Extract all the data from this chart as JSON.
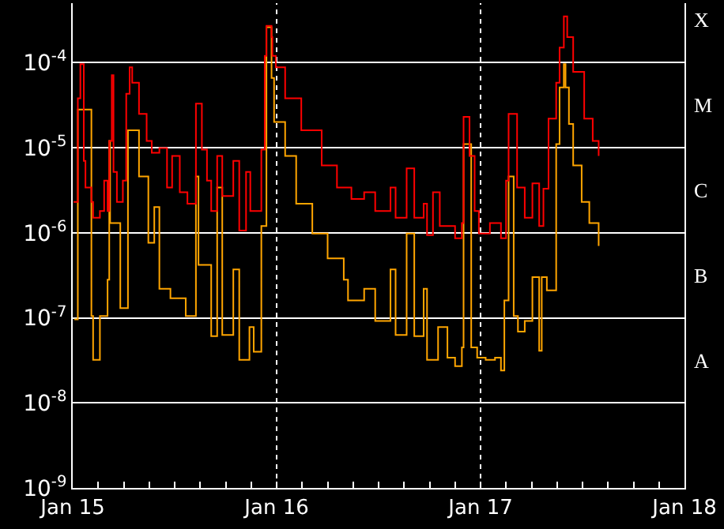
{
  "chart_data": {
    "type": "step",
    "log": "y",
    "grid": "y",
    "marker": "none",
    "line_style": "solid",
    "xlim": [
      "--01-15",
      "--01-18"
    ],
    "xticks": [
      {
        "value": "--01-15",
        "label": "Jan 15"
      },
      {
        "value": "--01-15T03:00",
        "label": null
      },
      {
        "value": "--01-15T06:00",
        "label": null
      },
      {
        "value": "--01-15T09:00",
        "label": null
      },
      {
        "value": "--01-15T12:00",
        "label": null
      },
      {
        "value": "--01-15T15:00",
        "label": null
      },
      {
        "value": "--01-15T18:00",
        "label": null
      },
      {
        "value": "--01-15T21:00",
        "label": null
      },
      {
        "value": "--01-16",
        "label": "Jan 16"
      },
      {
        "value": "--01-16T03:00",
        "label": null
      },
      {
        "value": "--01-16T06:00",
        "label": null
      },
      {
        "value": "--01-16T09:00",
        "label": null
      },
      {
        "value": "--01-16T12:00",
        "label": null
      },
      {
        "value": "--01-16T15:00",
        "label": null
      },
      {
        "value": "--01-16T18:00",
        "label": null
      },
      {
        "value": "--01-16T21:00",
        "label": null
      },
      {
        "value": "--01-17",
        "label": "Jan 17"
      },
      {
        "value": "--01-17T03:00",
        "label": null
      },
      {
        "value": "--01-17T06:00",
        "label": null
      },
      {
        "value": "--01-17T09:00",
        "label": null
      },
      {
        "value": "--01-17T12:00",
        "label": null
      },
      {
        "value": "--01-17T15:00",
        "label": null
      },
      {
        "value": "--01-17T18:00",
        "label": null
      },
      {
        "value": "--01-17T21:00",
        "label": null
      },
      {
        "value": "--01-18",
        "label": "Jan 18"
      }
    ],
    "ylim": [
      1e-09,
      0.0005
    ],
    "yticks": [
      {
        "value": 1e-09,
        "label": "10$^{-9}$"
      },
      {
        "value": 1e-08,
        "label": "10$^{-8}$"
      },
      {
        "value": 1e-07,
        "label": "10$^{-7}$"
      },
      {
        "value": 1e-06,
        "label": "10$^{-6}$"
      },
      {
        "value": 1e-05,
        "label": "10$^{-5}$"
      },
      {
        "value": 0.0001,
        "label": "10$^{-4}$"
      }
    ],
    "annotations": [
      "A",
      "B",
      "C",
      "M",
      "X"
    ],
    "ref_lines": [
      {
        "axis": "x",
        "value": "--01-16",
        "color": "#ffffff",
        "line_style": "dotted"
      },
      {
        "axis": "x",
        "value": "--01-17",
        "color": "#ffffff",
        "line_style": "dotted"
      }
    ],
    "series": [
      {
        "color": "#ffa500",
        "x": [
          "--01-15T00:12",
          "--01-15T00:36",
          "--01-15T02:12",
          "--01-15T02:24",
          "--01-15T03:12",
          "--01-15T04:06",
          "--01-15T04:18",
          "--01-15T04:24",
          "--01-15T05:36",
          "--01-15T06:30",
          "--01-15T07:48",
          "--01-15T08:54",
          "--01-15T09:36",
          "--01-15T10:12",
          "--01-15T11:30",
          "--01-15T13:18",
          "--01-15T14:30",
          "--01-15T14:48",
          "--01-15T16:18",
          "--01-15T17:00",
          "--01-15T17:36",
          "--01-15T18:54",
          "--01-15T19:36",
          "--01-15T20:48",
          "--01-15T21:18",
          "--01-15T22:12",
          "--01-15T22:48",
          "--01-15T23:24",
          "--01-15T23:42",
          "--01-16T01:00",
          "--01-16T02:18",
          "--01-16T04:12",
          "--01-16T06:00",
          "--01-16T07:54",
          "--01-16T08:24",
          "--01-16T10:18",
          "--01-16T11:36",
          "--01-16T13:24",
          "--01-16T14:00",
          "--01-16T15:18",
          "--01-16T16:12",
          "--01-16T17:18",
          "--01-16T17:42",
          "--01-16T19:00",
          "--01-16T20:06",
          "--01-16T21:00",
          "--01-16T21:48",
          "--01-16T22:00",
          "--01-16T22:54",
          "--01-16T23:36",
          "--01-17T00:36",
          "--01-17T01:42",
          "--01-17T02:24",
          "--01-17T02:48",
          "--01-17T03:18",
          "--01-17T03:54",
          "--01-17T04:24",
          "--01-17T05:12",
          "--01-17T06:06",
          "--01-17T06:54",
          "--01-17T07:12",
          "--01-17T07:48",
          "--01-17T08:54",
          "--01-17T09:18",
          "--01-17T09:48",
          "--01-17T10:00",
          "--01-17T10:24",
          "--01-17T10:54",
          "--01-17T11:54",
          "--01-17T12:48",
          "--01-17T13:54"
        ],
        "values": [
          9.6e-08,
          2.8e-05,
          1.05e-07,
          3.2e-08,
          1.05e-07,
          2.8e-07,
          1.2e-05,
          1.3e-06,
          1.3e-07,
          1.6e-05,
          4.6e-06,
          7.6e-07,
          2e-06,
          2.2e-07,
          1.7e-07,
          1.05e-07,
          4.6e-06,
          4.2e-07,
          6.1e-08,
          3.4e-06,
          6.3e-08,
          3.7e-07,
          3.2e-08,
          7.8e-08,
          4e-08,
          1.2e-06,
          0.00026,
          6.6e-05,
          2e-05,
          8e-06,
          2.2e-06,
          9.8e-07,
          5e-07,
          2.8e-07,
          1.6e-07,
          2.2e-07,
          9.2e-08,
          3.7e-07,
          6.3e-08,
          9.8e-07,
          6.1e-08,
          2.2e-07,
          3.2e-08,
          7.8e-08,
          3.4e-08,
          2.7e-08,
          4.5e-08,
          1.1e-05,
          4.5e-08,
          3.4e-08,
          3.2e-08,
          3.4e-08,
          2.4e-08,
          1.6e-07,
          4.6e-06,
          1.05e-07,
          6.9e-08,
          9.2e-08,
          3e-07,
          4.1e-08,
          3e-07,
          2.1e-07,
          1.1e-05,
          5.1e-05,
          9.6e-05,
          5.1e-05,
          1.9e-05,
          6.2e-06,
          2.3e-06,
          1.3e-06,
          7e-07
        ]
      },
      {
        "color": "#ff0000",
        "x": [
          "--01-15T00:06",
          "--01-15T00:36",
          "--01-15T00:54",
          "--01-15T01:18",
          "--01-15T01:30",
          "--01-15T02:12",
          "--01-15T02:24",
          "--01-15T03:12",
          "--01-15T03:42",
          "--01-15T04:06",
          "--01-15T04:18",
          "--01-15T04:36",
          "--01-15T04:48",
          "--01-15T05:12",
          "--01-15T05:54",
          "--01-15T06:18",
          "--01-15T06:42",
          "--01-15T07:00",
          "--01-15T07:48",
          "--01-15T08:42",
          "--01-15T09:18",
          "--01-15T10:12",
          "--01-15T11:06",
          "--01-15T11:42",
          "--01-15T12:36",
          "--01-15T13:30",
          "--01-15T14:30",
          "--01-15T15:12",
          "--01-15T15:48",
          "--01-15T16:18",
          "--01-15T17:00",
          "--01-15T17:36",
          "--01-15T18:54",
          "--01-15T19:36",
          "--01-15T20:24",
          "--01-15T20:54",
          "--01-15T21:54",
          "--01-15T22:12",
          "--01-15T22:36",
          "--01-15T22:48",
          "--01-15T23:24",
          "--01-15T23:30",
          "--01-15T23:54",
          "--01-16T01:00",
          "--01-16T02:54",
          "--01-16T05:18",
          "--01-16T07:06",
          "--01-16T08:48",
          "--01-16T10:18",
          "--01-16T11:36",
          "--01-16T13:24",
          "--01-16T14:00",
          "--01-16T15:18",
          "--01-16T16:12",
          "--01-16T17:18",
          "--01-16T17:42",
          "--01-16T18:24",
          "--01-16T19:12",
          "--01-16T21:00",
          "--01-16T21:48",
          "--01-16T22:00",
          "--01-16T22:42",
          "--01-16T23:18",
          "--01-16T23:48",
          "--01-17T01:06",
          "--01-17T02:24",
          "--01-17T03:00",
          "--01-17T03:18",
          "--01-17T04:18",
          "--01-17T05:12",
          "--01-17T06:06",
          "--01-17T06:54",
          "--01-17T07:24",
          "--01-17T08:00",
          "--01-17T08:54",
          "--01-17T09:18",
          "--01-17T09:48",
          "--01-17T10:12",
          "--01-17T10:54",
          "--01-17T12:12",
          "--01-17T13:12",
          "--01-17T13:54"
        ],
        "values": [
          2.3e-06,
          3.8e-05,
          9.6e-05,
          7e-06,
          3.4e-06,
          2.3e-06,
          1.5e-06,
          1.8e-06,
          4.1e-06,
          1.8e-06,
          1.2e-05,
          7.1e-05,
          5.2e-06,
          2.3e-06,
          4.1e-06,
          4.3e-05,
          8.8e-05,
          5.8e-05,
          2.5e-05,
          1.2e-05,
          8.7e-06,
          9.9e-06,
          3.4e-06,
          8e-06,
          3e-06,
          2.2e-06,
          3.3e-05,
          9.5e-06,
          4.1e-06,
          1.8e-06,
          8e-06,
          2.7e-06,
          7e-06,
          1.06e-06,
          5.2e-06,
          1.8e-06,
          1.8e-06,
          9.5e-06,
          0.00012,
          0.00027,
          0.0002,
          0.00012,
          8.8e-05,
          3.8e-05,
          1.6e-05,
          6.2e-06,
          3.4e-06,
          2.5e-06,
          3e-06,
          1.8e-06,
          3.4e-06,
          1.5e-06,
          5.7e-06,
          1.5e-06,
          2.2e-06,
          9.4e-07,
          3e-06,
          1.2e-06,
          8.6e-07,
          1.3e-06,
          2.3e-05,
          8e-06,
          1.8e-06,
          9.8e-07,
          1.3e-06,
          8.6e-07,
          4.1e-06,
          2.5e-05,
          3.4e-06,
          1.5e-06,
          3.8e-06,
          1.2e-06,
          3.3e-06,
          2.2e-05,
          5.8e-05,
          0.00015,
          0.00035,
          0.0002,
          7.8e-05,
          2.2e-05,
          1.2e-05,
          8e-06
        ]
      }
    ]
  }
}
